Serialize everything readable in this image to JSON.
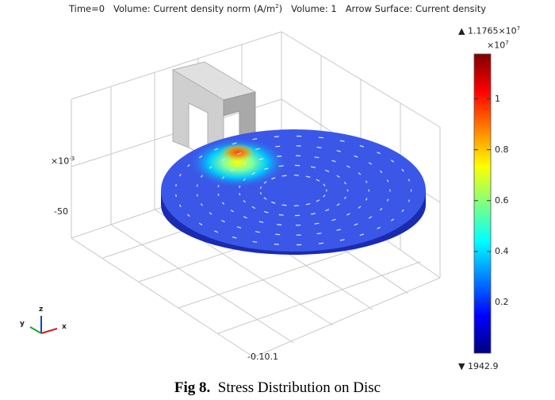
{
  "header": {
    "time": "Time=0",
    "volume_label": "Volume: Current density norm (A/m",
    "volume_unit_exp": "2",
    "volume_close": ")",
    "volume_no": "Volume: 1",
    "arrow": "Arrow Surface: Current density"
  },
  "axes": {
    "z_scale_base": "×10",
    "z_scale_exp": "-3",
    "z_tick": "-50",
    "x_tick": "-0.10.1"
  },
  "triad": {
    "x": "x",
    "y": "y",
    "z": "z"
  },
  "colorbar": {
    "max_marker": "▲",
    "max_base": "1.1765×10",
    "max_exp": "7",
    "scale_base": "×10",
    "scale_exp": "7",
    "min_marker": "▼",
    "min_value": "1942.9",
    "ticks": [
      "1",
      "0.8",
      "0.6",
      "0.4",
      "0.2"
    ],
    "tick_values": [
      1.0,
      0.8,
      0.6,
      0.4,
      0.2
    ],
    "range": [
      0.0001942,
      1.1765
    ],
    "colors": [
      "#00007f",
      "#0000ff",
      "#0080ff",
      "#00ffff",
      "#80ff80",
      "#ffff00",
      "#ff8000",
      "#ff0000",
      "#7f0000"
    ]
  },
  "caption": {
    "label": "Fig 8.",
    "text": "Stress Distribution on Disc"
  },
  "colors": {
    "disc_top": "#3b57e8",
    "disc_side": "#1a2bb0",
    "core_face": "#cfcfcf",
    "core_side": "#a9a9a9",
    "grid": "#c8c8c8"
  }
}
